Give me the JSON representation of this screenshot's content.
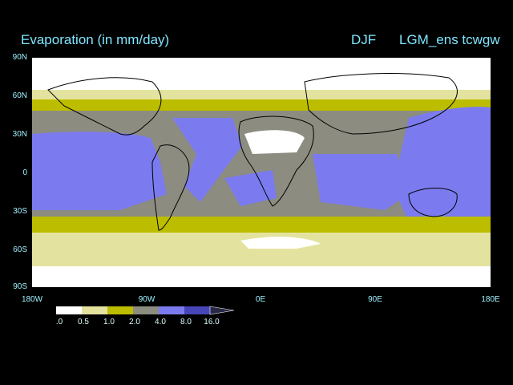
{
  "header": {
    "title": "Evaporation (in mm/day)",
    "season": "DJF",
    "experiment": "LGM_ens tcwgw"
  },
  "axes": {
    "lat_labels": [
      "90N",
      "60N",
      "30N",
      "0",
      "30S",
      "60S",
      "90S"
    ],
    "lon_labels": [
      "180W",
      "90W",
      "0E",
      "90E",
      "180E"
    ]
  },
  "colorbar": {
    "labels": [
      ".0",
      "0.5",
      "1.0",
      "2.0",
      "4.0",
      "8.0",
      "16.0"
    ],
    "colors": [
      "#ffffff",
      "#e3e39f",
      "#bdbd00",
      "#8c8c80",
      "#7b7bef",
      "#4646b8",
      "#282846"
    ]
  },
  "palette": {
    "ocean_low": "#8c8c80",
    "ocean_high": "#7b7bef",
    "mid_band": "#bdbd00",
    "pale_band": "#e3e39f",
    "dry": "#ffffff",
    "coast": "#000000"
  }
}
